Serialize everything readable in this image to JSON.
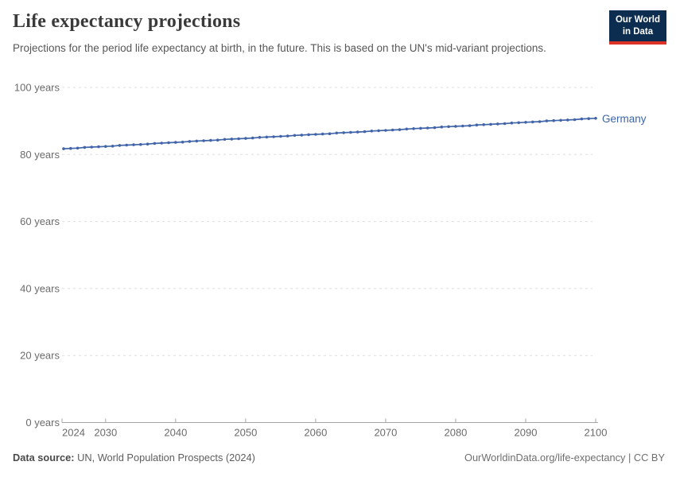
{
  "header": {
    "title": "Life expectancy projections",
    "subtitle": "Projections for the period life expectancy at birth, in the future. This is based on the UN's mid-variant projections.",
    "logo": {
      "line1": "Our World",
      "line2": "in Data",
      "bg_color": "#0c2c50",
      "accent_color": "#dc3228"
    }
  },
  "footer": {
    "data_source_label": "Data source:",
    "data_source_value": "UN, World Population Prospects (2024)",
    "credit": "OurWorldinData.org/life-expectancy | CC BY"
  },
  "chart_data": {
    "type": "line",
    "title": "Life expectancy projections",
    "xlabel": "",
    "ylabel": "",
    "xlim": [
      2024,
      2100
    ],
    "ylim": [
      0,
      100
    ],
    "grid": "horizontal-dashed",
    "legend": "end-of-line-label",
    "axis_color": "#a5a5a5",
    "gridline_color": "#dedede",
    "tick_label_color": "#6b6b6b",
    "x": [
      2024,
      2025,
      2026,
      2027,
      2028,
      2029,
      2030,
      2031,
      2032,
      2033,
      2034,
      2035,
      2036,
      2037,
      2038,
      2039,
      2040,
      2041,
      2042,
      2043,
      2044,
      2045,
      2046,
      2047,
      2048,
      2049,
      2050,
      2051,
      2052,
      2053,
      2054,
      2055,
      2056,
      2057,
      2058,
      2059,
      2060,
      2061,
      2062,
      2063,
      2064,
      2065,
      2066,
      2067,
      2068,
      2069,
      2070,
      2071,
      2072,
      2073,
      2074,
      2075,
      2076,
      2077,
      2078,
      2079,
      2080,
      2081,
      2082,
      2083,
      2084,
      2085,
      2086,
      2087,
      2088,
      2089,
      2090,
      2091,
      2092,
      2093,
      2094,
      2095,
      2096,
      2097,
      2098,
      2099,
      2100
    ],
    "series": [
      {
        "name": "Germany",
        "color": "#4165a8",
        "label_color": "#3d64a8",
        "values": [
          81.7,
          81.8,
          81.9,
          82.1,
          82.2,
          82.3,
          82.4,
          82.5,
          82.7,
          82.8,
          82.9,
          83.0,
          83.1,
          83.3,
          83.4,
          83.5,
          83.6,
          83.7,
          83.9,
          84.0,
          84.1,
          84.2,
          84.3,
          84.5,
          84.6,
          84.7,
          84.8,
          84.9,
          85.1,
          85.2,
          85.3,
          85.4,
          85.5,
          85.7,
          85.8,
          85.9,
          86.0,
          86.1,
          86.2,
          86.4,
          86.5,
          86.6,
          86.7,
          86.8,
          87.0,
          87.1,
          87.2,
          87.3,
          87.4,
          87.6,
          87.7,
          87.8,
          87.9,
          88.0,
          88.2,
          88.3,
          88.4,
          88.5,
          88.6,
          88.8,
          88.9,
          89.0,
          89.1,
          89.2,
          89.4,
          89.5,
          89.6,
          89.7,
          89.8,
          90.0,
          90.1,
          90.2,
          90.3,
          90.4,
          90.6,
          90.7,
          90.8
        ]
      }
    ],
    "yticks": [
      {
        "value": 0,
        "label": "0 years"
      },
      {
        "value": 20,
        "label": "20 years"
      },
      {
        "value": 40,
        "label": "40 years"
      },
      {
        "value": 60,
        "label": "60 years"
      },
      {
        "value": 80,
        "label": "80 years"
      },
      {
        "value": 100,
        "label": "100 years"
      }
    ],
    "xticks": [
      {
        "value": 2024,
        "label": "2024"
      },
      {
        "value": 2030,
        "label": "2030"
      },
      {
        "value": 2040,
        "label": "2040"
      },
      {
        "value": 2050,
        "label": "2050"
      },
      {
        "value": 2060,
        "label": "2060"
      },
      {
        "value": 2070,
        "label": "2070"
      },
      {
        "value": 2080,
        "label": "2080"
      },
      {
        "value": 2090,
        "label": "2090"
      },
      {
        "value": 2100,
        "label": "2100"
      }
    ]
  }
}
